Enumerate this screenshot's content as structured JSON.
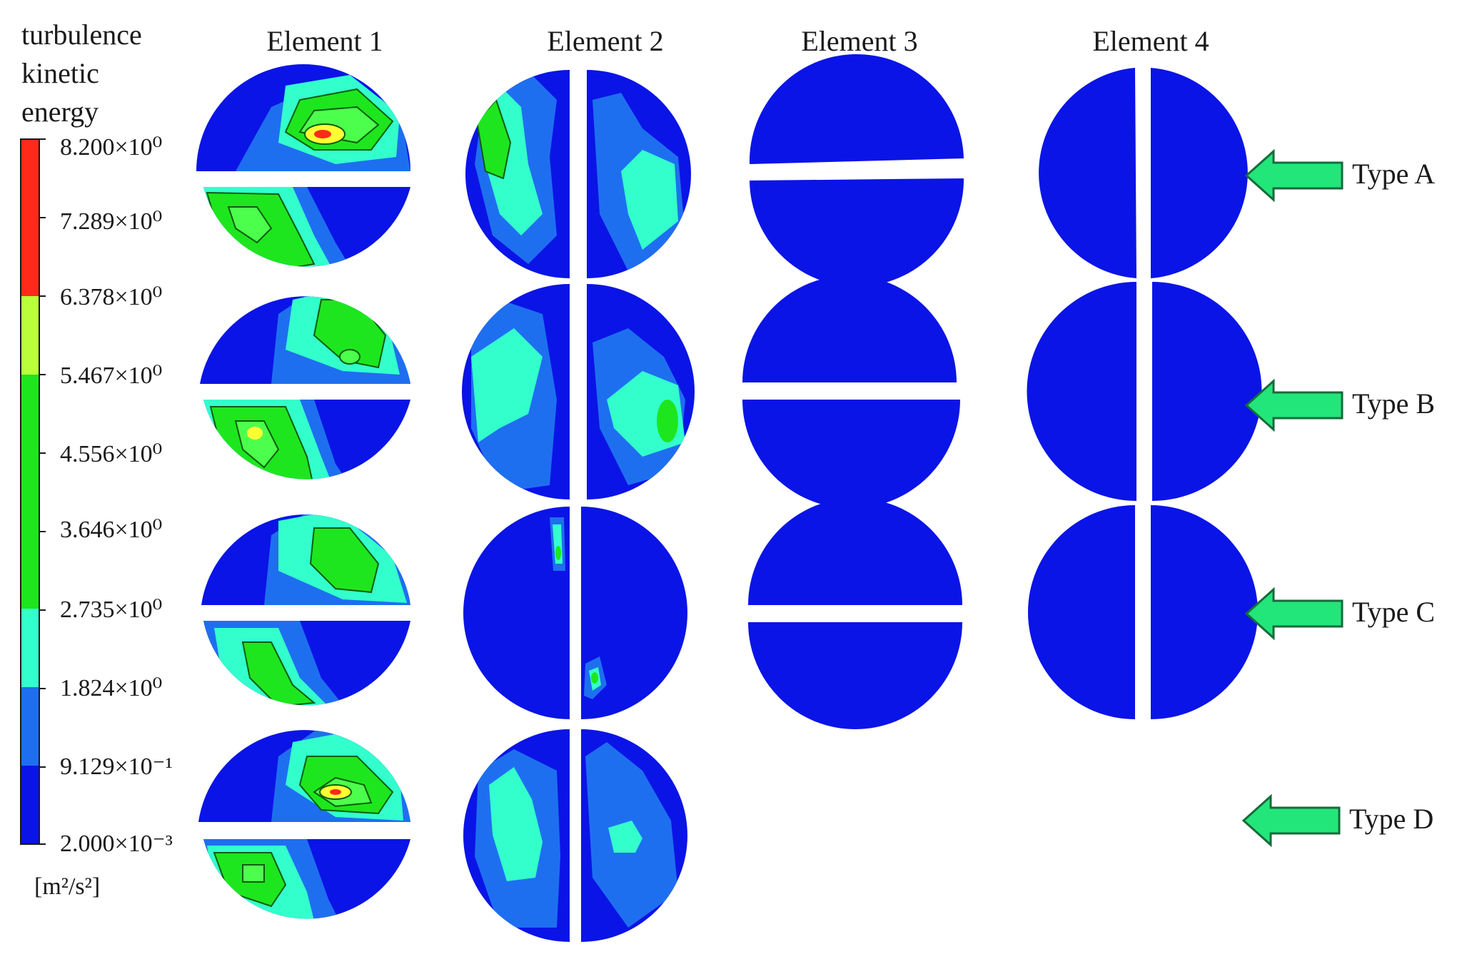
{
  "legend": {
    "title_lines": [
      "turbulence",
      "kinetic",
      "energy"
    ],
    "ticks": [
      "8.200×10⁰",
      "7.289×10⁰",
      "6.378×10⁰",
      "5.467×10⁰",
      "4.556×10⁰",
      "3.646×10⁰",
      "2.735×10⁰",
      "1.824×10⁰",
      "9.129×10⁻¹",
      "2.000×10⁻³"
    ],
    "units": "[m²/s²]",
    "band_colors": [
      "#ff2a1a",
      "#ff2a1a",
      "#b9ff3a",
      "#1ee61e",
      "#1ee61e",
      "#1ee61e",
      "#33ffcc",
      "#1e6ff0",
      "#0a14e6"
    ]
  },
  "columns": [
    "Element 1",
    "Element 2",
    "Element 3",
    "Element 4"
  ],
  "rows": [
    "Type A",
    "Type B",
    "Type C",
    "Type D"
  ],
  "colors": {
    "deep_blue": "#0a14e6",
    "blue": "#1e6ff0",
    "cyan": "#33ffcc",
    "green": "#1ee61e",
    "lime": "#b9ff3a",
    "yellow": "#ffff33",
    "red": "#ff2a1a",
    "arrow_fill": "#22e67a",
    "arrow_stroke": "#156b3a"
  },
  "icons": [
    "arrow-left-icon"
  ]
}
